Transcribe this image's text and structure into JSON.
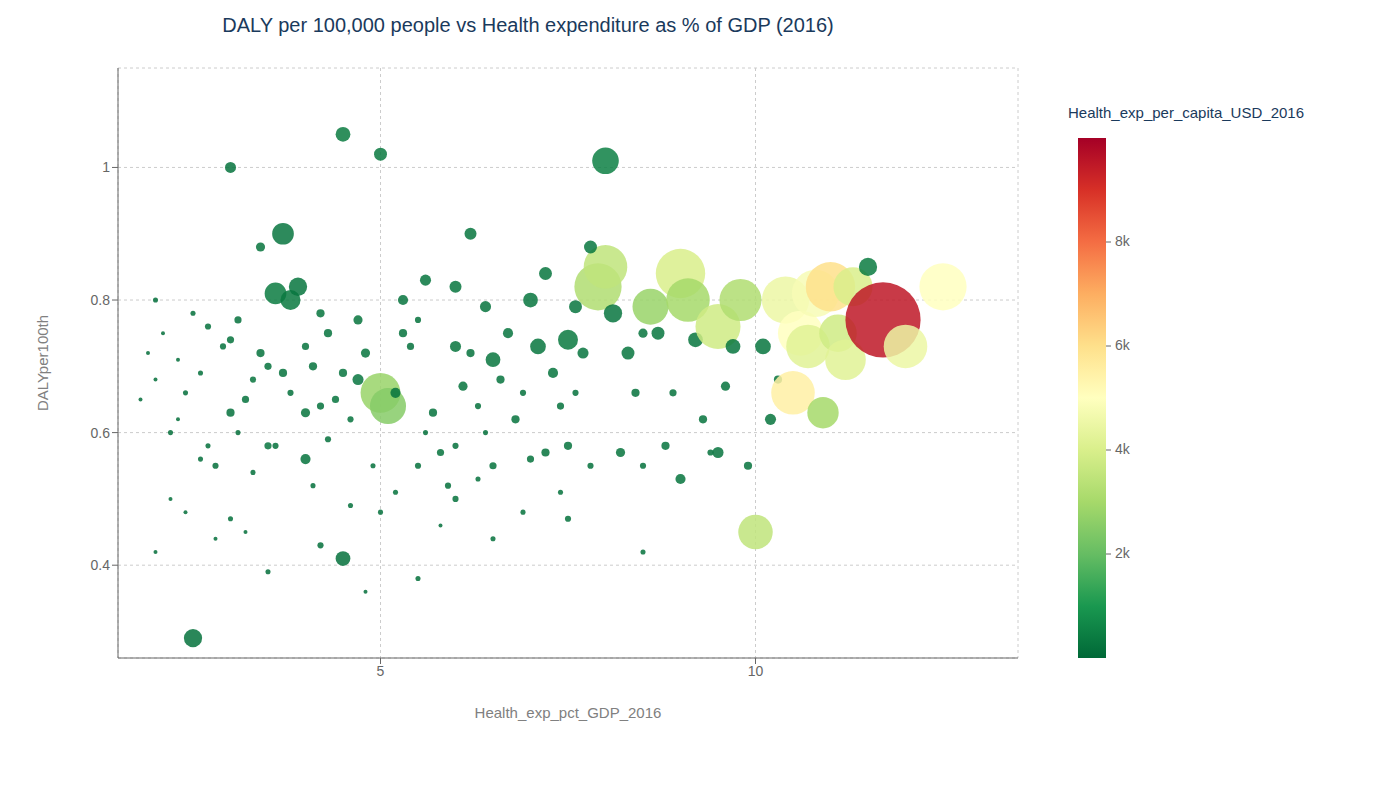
{
  "chart_data": {
    "type": "scatter",
    "title": "DALY per 100,000 people vs Health expenditure as % of GDP (2016)",
    "xlabel": "Health_exp_pct_GDP_2016",
    "ylabel": "DALYper100th",
    "xlim": [
      1.5,
      13.5
    ],
    "ylim": [
      0.26,
      1.15
    ],
    "xticks": [
      5,
      10
    ],
    "yticks": [
      0.4,
      0.6,
      0.8,
      1
    ],
    "grid": true,
    "colorbar_label": "Health_exp_per_capita_USD_2016",
    "colorbar_lim": [
      0,
      10000
    ],
    "colorbar_ticks": [
      {
        "value": 2000,
        "label": "2k"
      },
      {
        "value": 4000,
        "label": "4k"
      },
      {
        "value": 6000,
        "label": "6k"
      },
      {
        "value": 8000,
        "label": "8k"
      }
    ],
    "points": [
      {
        "x": 2.5,
        "y": 0.29,
        "color_value": 200,
        "size": 18
      },
      {
        "x": 2.8,
        "y": 0.55,
        "color_value": 150,
        "size": 5
      },
      {
        "x": 3.0,
        "y": 0.63,
        "color_value": 180,
        "size": 7
      },
      {
        "x": 3.1,
        "y": 0.6,
        "color_value": 120,
        "size": 4
      },
      {
        "x": 3.2,
        "y": 0.65,
        "color_value": 200,
        "size": 6
      },
      {
        "x": 3.3,
        "y": 0.68,
        "color_value": 250,
        "size": 5
      },
      {
        "x": 3.5,
        "y": 0.58,
        "color_value": 300,
        "size": 6
      },
      {
        "x": 3.6,
        "y": 0.81,
        "color_value": 400,
        "size": 22
      },
      {
        "x": 3.7,
        "y": 0.9,
        "color_value": 300,
        "size": 22
      },
      {
        "x": 3.8,
        "y": 0.8,
        "color_value": 350,
        "size": 20
      },
      {
        "x": 3.9,
        "y": 0.82,
        "color_value": 280,
        "size": 18
      },
      {
        "x": 4.0,
        "y": 0.56,
        "color_value": 220,
        "size": 9
      },
      {
        "x": 4.0,
        "y": 0.63,
        "color_value": 250,
        "size": 8
      },
      {
        "x": 4.1,
        "y": 0.7,
        "color_value": 200,
        "size": 7
      },
      {
        "x": 4.2,
        "y": 0.64,
        "color_value": 210,
        "size": 6
      },
      {
        "x": 4.3,
        "y": 0.59,
        "color_value": 180,
        "size": 5
      },
      {
        "x": 4.4,
        "y": 0.65,
        "color_value": 240,
        "size": 6
      },
      {
        "x": 4.5,
        "y": 0.69,
        "color_value": 260,
        "size": 7
      },
      {
        "x": 4.5,
        "y": 0.41,
        "color_value": 190,
        "size": 14
      },
      {
        "x": 4.6,
        "y": 0.62,
        "color_value": 220,
        "size": 5
      },
      {
        "x": 4.7,
        "y": 0.68,
        "color_value": 300,
        "size": 10
      },
      {
        "x": 4.8,
        "y": 0.72,
        "color_value": 280,
        "size": 8
      },
      {
        "x": 4.9,
        "y": 0.55,
        "color_value": 170,
        "size": 4
      },
      {
        "x": 5.0,
        "y": 0.66,
        "color_value": 2800,
        "size": 45
      },
      {
        "x": 5.1,
        "y": 0.64,
        "color_value": 2500,
        "size": 40
      },
      {
        "x": 5.2,
        "y": 0.66,
        "color_value": 230,
        "size": 9
      },
      {
        "x": 5.3,
        "y": 0.75,
        "color_value": 200,
        "size": 7
      },
      {
        "x": 5.4,
        "y": 0.73,
        "color_value": 190,
        "size": 6
      },
      {
        "x": 5.5,
        "y": 0.77,
        "color_value": 210,
        "size": 5
      },
      {
        "x": 5.5,
        "y": 0.55,
        "color_value": 180,
        "size": 5
      },
      {
        "x": 5.6,
        "y": 0.6,
        "color_value": 160,
        "size": 4
      },
      {
        "x": 5.7,
        "y": 0.63,
        "color_value": 200,
        "size": 7
      },
      {
        "x": 5.8,
        "y": 0.57,
        "color_value": 220,
        "size": 6
      },
      {
        "x": 5.9,
        "y": 0.52,
        "color_value": 170,
        "size": 5
      },
      {
        "x": 6.0,
        "y": 0.73,
        "color_value": 250,
        "size": 10
      },
      {
        "x": 6.0,
        "y": 0.58,
        "color_value": 190,
        "size": 5
      },
      {
        "x": 6.1,
        "y": 0.67,
        "color_value": 240,
        "size": 8
      },
      {
        "x": 6.2,
        "y": 0.72,
        "color_value": 210,
        "size": 7
      },
      {
        "x": 6.3,
        "y": 0.64,
        "color_value": 180,
        "size": 5
      },
      {
        "x": 6.4,
        "y": 0.6,
        "color_value": 160,
        "size": 4
      },
      {
        "x": 6.5,
        "y": 0.71,
        "color_value": 290,
        "size": 14
      },
      {
        "x": 6.5,
        "y": 0.55,
        "color_value": 200,
        "size": 6
      },
      {
        "x": 6.6,
        "y": 0.68,
        "color_value": 230,
        "size": 7
      },
      {
        "x": 6.7,
        "y": 0.75,
        "color_value": 260,
        "size": 9
      },
      {
        "x": 6.8,
        "y": 0.62,
        "color_value": 220,
        "size": 7
      },
      {
        "x": 6.9,
        "y": 0.66,
        "color_value": 190,
        "size": 5
      },
      {
        "x": 7.0,
        "y": 0.8,
        "color_value": 270,
        "size": 14
      },
      {
        "x": 7.0,
        "y": 0.56,
        "color_value": 200,
        "size": 6
      },
      {
        "x": 7.1,
        "y": 0.73,
        "color_value": 280,
        "size": 15
      },
      {
        "x": 7.2,
        "y": 0.57,
        "color_value": 210,
        "size": 7
      },
      {
        "x": 7.3,
        "y": 0.69,
        "color_value": 240,
        "size": 9
      },
      {
        "x": 7.4,
        "y": 0.64,
        "color_value": 200,
        "size": 6
      },
      {
        "x": 7.5,
        "y": 0.74,
        "color_value": 350,
        "size": 20
      },
      {
        "x": 7.5,
        "y": 0.58,
        "color_value": 220,
        "size": 7
      },
      {
        "x": 7.6,
        "y": 0.66,
        "color_value": 190,
        "size": 5
      },
      {
        "x": 7.7,
        "y": 0.72,
        "color_value": 260,
        "size": 10
      },
      {
        "x": 7.8,
        "y": 0.55,
        "color_value": 180,
        "size": 5
      },
      {
        "x": 7.9,
        "y": 0.82,
        "color_value": 3200,
        "size": 55
      },
      {
        "x": 8.0,
        "y": 0.85,
        "color_value": 3500,
        "size": 50
      },
      {
        "x": 8.0,
        "y": 1.01,
        "color_value": 500,
        "size": 28
      },
      {
        "x": 8.1,
        "y": 0.78,
        "color_value": 300,
        "size": 18
      },
      {
        "x": 8.2,
        "y": 0.57,
        "color_value": 250,
        "size": 8
      },
      {
        "x": 8.3,
        "y": 0.72,
        "color_value": 280,
        "size": 12
      },
      {
        "x": 8.4,
        "y": 0.66,
        "color_value": 210,
        "size": 7
      },
      {
        "x": 8.5,
        "y": 0.55,
        "color_value": 190,
        "size": 5
      },
      {
        "x": 8.6,
        "y": 0.79,
        "color_value": 2800,
        "size": 40
      },
      {
        "x": 8.7,
        "y": 0.75,
        "color_value": 270,
        "size": 12
      },
      {
        "x": 8.8,
        "y": 0.58,
        "color_value": 230,
        "size": 7
      },
      {
        "x": 8.9,
        "y": 0.66,
        "color_value": 200,
        "size": 6
      },
      {
        "x": 9.0,
        "y": 0.84,
        "color_value": 4000,
        "size": 58
      },
      {
        "x": 9.0,
        "y": 0.53,
        "color_value": 240,
        "size": 9
      },
      {
        "x": 9.1,
        "y": 0.8,
        "color_value": 3000,
        "size": 50
      },
      {
        "x": 9.2,
        "y": 0.74,
        "color_value": 290,
        "size": 14
      },
      {
        "x": 9.3,
        "y": 0.62,
        "color_value": 220,
        "size": 7
      },
      {
        "x": 9.4,
        "y": 0.57,
        "color_value": 200,
        "size": 5
      },
      {
        "x": 9.5,
        "y": 0.76,
        "color_value": 3800,
        "size": 52
      },
      {
        "x": 9.5,
        "y": 0.57,
        "color_value": 260,
        "size": 10
      },
      {
        "x": 9.6,
        "y": 0.67,
        "color_value": 230,
        "size": 8
      },
      {
        "x": 9.7,
        "y": 0.73,
        "color_value": 280,
        "size": 14
      },
      {
        "x": 9.8,
        "y": 0.8,
        "color_value": 3200,
        "size": 48
      },
      {
        "x": 9.9,
        "y": 0.55,
        "color_value": 220,
        "size": 7
      },
      {
        "x": 10.0,
        "y": 0.45,
        "color_value": 3500,
        "size": 38
      },
      {
        "x": 10.1,
        "y": 0.73,
        "color_value": 280,
        "size": 15
      },
      {
        "x": 10.2,
        "y": 0.62,
        "color_value": 250,
        "size": 10
      },
      {
        "x": 10.3,
        "y": 0.68,
        "color_value": 220,
        "size": 7
      },
      {
        "x": 10.4,
        "y": 0.8,
        "color_value": 4500,
        "size": 55
      },
      {
        "x": 10.5,
        "y": 0.66,
        "color_value": 5500,
        "size": 50
      },
      {
        "x": 10.6,
        "y": 0.75,
        "color_value": 5000,
        "size": 52
      },
      {
        "x": 10.7,
        "y": 0.73,
        "color_value": 4200,
        "size": 50
      },
      {
        "x": 10.8,
        "y": 0.81,
        "color_value": 4800,
        "size": 55
      },
      {
        "x": 10.9,
        "y": 0.63,
        "color_value": 3000,
        "size": 34
      },
      {
        "x": 11.0,
        "y": 0.82,
        "color_value": 6000,
        "size": 58
      },
      {
        "x": 11.1,
        "y": 0.75,
        "color_value": 3800,
        "size": 42
      },
      {
        "x": 11.2,
        "y": 0.71,
        "color_value": 4200,
        "size": 46
      },
      {
        "x": 11.3,
        "y": 0.82,
        "color_value": 4000,
        "size": 44
      },
      {
        "x": 11.5,
        "y": 0.85,
        "color_value": 400,
        "size": 18
      },
      {
        "x": 11.7,
        "y": 0.77,
        "color_value": 9500,
        "size": 95
      },
      {
        "x": 12.0,
        "y": 0.73,
        "color_value": 4500,
        "size": 50
      },
      {
        "x": 12.5,
        "y": 0.82,
        "color_value": 5000,
        "size": 55
      },
      {
        "x": 3.2,
        "y": 0.45,
        "color_value": 130,
        "size": 3
      },
      {
        "x": 3.5,
        "y": 0.39,
        "color_value": 150,
        "size": 4
      },
      {
        "x": 4.2,
        "y": 0.43,
        "color_value": 170,
        "size": 5
      },
      {
        "x": 4.8,
        "y": 0.36,
        "color_value": 140,
        "size": 3
      },
      {
        "x": 5.5,
        "y": 0.38,
        "color_value": 160,
        "size": 4
      },
      {
        "x": 2.0,
        "y": 0.42,
        "color_value": 110,
        "size": 3
      },
      {
        "x": 2.2,
        "y": 0.5,
        "color_value": 130,
        "size": 3
      },
      {
        "x": 2.4,
        "y": 0.48,
        "color_value": 120,
        "size": 3
      },
      {
        "x": 2.6,
        "y": 0.56,
        "color_value": 140,
        "size": 4
      },
      {
        "x": 2.8,
        "y": 0.44,
        "color_value": 150,
        "size": 3
      },
      {
        "x": 3.0,
        "y": 0.47,
        "color_value": 160,
        "size": 4
      },
      {
        "x": 3.5,
        "y": 0.7,
        "color_value": 200,
        "size": 6
      },
      {
        "x": 4.0,
        "y": 0.73,
        "color_value": 220,
        "size": 6
      },
      {
        "x": 3.8,
        "y": 0.66,
        "color_value": 190,
        "size": 5
      },
      {
        "x": 4.2,
        "y": 0.78,
        "color_value": 240,
        "size": 7
      },
      {
        "x": 5.0,
        "y": 0.48,
        "color_value": 180,
        "size": 4
      },
      {
        "x": 6.0,
        "y": 0.5,
        "color_value": 200,
        "size": 5
      },
      {
        "x": 6.5,
        "y": 0.44,
        "color_value": 190,
        "size": 4
      },
      {
        "x": 7.5,
        "y": 0.47,
        "color_value": 210,
        "size": 5
      },
      {
        "x": 8.5,
        "y": 0.42,
        "color_value": 200,
        "size": 4
      },
      {
        "x": 1.8,
        "y": 0.65,
        "color_value": 100,
        "size": 3
      },
      {
        "x": 1.9,
        "y": 0.72,
        "color_value": 110,
        "size": 3
      },
      {
        "x": 2.0,
        "y": 0.68,
        "color_value": 120,
        "size": 3
      },
      {
        "x": 2.1,
        "y": 0.75,
        "color_value": 130,
        "size": 3
      },
      {
        "x": 2.3,
        "y": 0.71,
        "color_value": 150,
        "size": 3
      },
      {
        "x": 2.5,
        "y": 0.78,
        "color_value": 170,
        "size": 4
      },
      {
        "x": 2.7,
        "y": 0.76,
        "color_value": 180,
        "size": 5
      },
      {
        "x": 3.0,
        "y": 0.74,
        "color_value": 200,
        "size": 6
      },
      {
        "x": 2.0,
        "y": 0.8,
        "color_value": 140,
        "size": 4
      },
      {
        "x": 2.3,
        "y": 0.62,
        "color_value": 130,
        "size": 3
      },
      {
        "x": 2.6,
        "y": 0.69,
        "color_value": 160,
        "size": 4
      },
      {
        "x": 2.9,
        "y": 0.73,
        "color_value": 190,
        "size": 5
      },
      {
        "x": 3.4,
        "y": 0.88,
        "color_value": 250,
        "size": 8
      },
      {
        "x": 4.5,
        "y": 1.05,
        "color_value": 400,
        "size": 14
      },
      {
        "x": 5.0,
        "y": 1.02,
        "color_value": 350,
        "size": 12
      },
      {
        "x": 3.0,
        "y": 1.0,
        "color_value": 220,
        "size": 10
      },
      {
        "x": 6.2,
        "y": 0.9,
        "color_value": 280,
        "size": 11
      },
      {
        "x": 7.8,
        "y": 0.88,
        "color_value": 310,
        "size": 12
      },
      {
        "x": 8.5,
        "y": 0.75,
        "color_value": 250,
        "size": 8
      },
      {
        "x": 3.3,
        "y": 0.54,
        "color_value": 170,
        "size": 4
      },
      {
        "x": 3.6,
        "y": 0.58,
        "color_value": 190,
        "size": 5
      },
      {
        "x": 4.1,
        "y": 0.52,
        "color_value": 160,
        "size": 4
      },
      {
        "x": 4.6,
        "y": 0.49,
        "color_value": 180,
        "size": 4
      },
      {
        "x": 5.2,
        "y": 0.51,
        "color_value": 200,
        "size": 4
      },
      {
        "x": 5.8,
        "y": 0.46,
        "color_value": 170,
        "size": 3
      },
      {
        "x": 6.3,
        "y": 0.53,
        "color_value": 190,
        "size": 4
      },
      {
        "x": 6.9,
        "y": 0.48,
        "color_value": 200,
        "size": 4
      },
      {
        "x": 7.4,
        "y": 0.51,
        "color_value": 210,
        "size": 4
      },
      {
        "x": 2.2,
        "y": 0.6,
        "color_value": 130,
        "size": 4
      },
      {
        "x": 2.4,
        "y": 0.66,
        "color_value": 140,
        "size": 4
      },
      {
        "x": 2.7,
        "y": 0.58,
        "color_value": 160,
        "size": 4
      },
      {
        "x": 3.1,
        "y": 0.77,
        "color_value": 190,
        "size": 6
      },
      {
        "x": 3.4,
        "y": 0.72,
        "color_value": 200,
        "size": 7
      },
      {
        "x": 3.7,
        "y": 0.69,
        "color_value": 210,
        "size": 7
      },
      {
        "x": 4.3,
        "y": 0.75,
        "color_value": 230,
        "size": 7
      },
      {
        "x": 4.7,
        "y": 0.77,
        "color_value": 250,
        "size": 8
      },
      {
        "x": 5.3,
        "y": 0.8,
        "color_value": 260,
        "size": 9
      },
      {
        "x": 5.6,
        "y": 0.83,
        "color_value": 270,
        "size": 10
      },
      {
        "x": 6.0,
        "y": 0.82,
        "color_value": 280,
        "size": 11
      },
      {
        "x": 6.4,
        "y": 0.79,
        "color_value": 260,
        "size": 10
      },
      {
        "x": 7.2,
        "y": 0.84,
        "color_value": 290,
        "size": 12
      },
      {
        "x": 7.6,
        "y": 0.79,
        "color_value": 300,
        "size": 12
      }
    ]
  }
}
